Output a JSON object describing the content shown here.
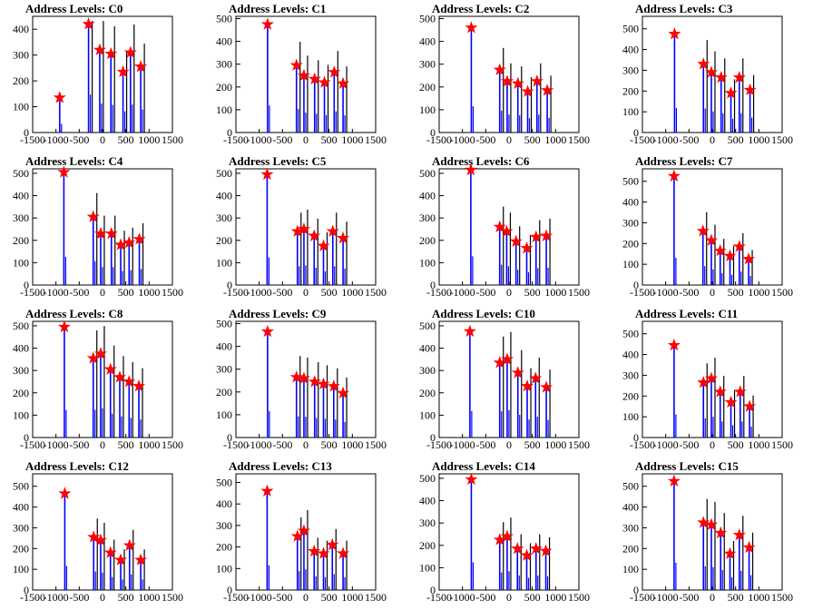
{
  "chart_data": [
    {
      "type": "bar",
      "title": "Address Levels: C0",
      "ylim": [
        0,
        450
      ],
      "yticks": [
        0,
        100,
        200,
        300,
        400
      ],
      "xlim": [
        -1500,
        1500
      ],
      "xtick_labels": [
        "-1500",
        "-1000",
        "-500",
        "0",
        "500",
        "1000",
        "1500"
      ],
      "markers": {
        "x": [
          -920,
          -300,
          -60,
          180,
          440,
          600,
          820
        ],
        "y": [
          135,
          420,
          320,
          305,
          235,
          310,
          255
        ]
      }
    },
    {
      "type": "bar",
      "title": "Address Levels: C1",
      "ylim": [
        0,
        510
      ],
      "yticks": [
        0,
        100,
        200,
        300,
        400,
        500
      ],
      "xlim": [
        -1500,
        1500
      ],
      "xtick_labels": [
        "-1500",
        "-1000",
        "-500",
        "0",
        "500",
        "1000",
        "1500"
      ],
      "markers": {
        "x": [
          -820,
          -200,
          -40,
          190,
          400,
          610,
          800
        ],
        "y": [
          475,
          295,
          250,
          235,
          220,
          265,
          215
        ]
      }
    },
    {
      "type": "bar",
      "title": "Address Levels: C2",
      "ylim": [
        0,
        510
      ],
      "yticks": [
        0,
        100,
        200,
        300,
        400,
        500
      ],
      "xlim": [
        -1500,
        1500
      ],
      "xtick_labels": [
        "-1500",
        "-1000",
        "-500",
        "0",
        "500",
        "1000",
        "1500"
      ],
      "markers": {
        "x": [
          -810,
          -200,
          -40,
          190,
          400,
          600,
          820
        ],
        "y": [
          460,
          275,
          225,
          215,
          180,
          225,
          185
        ]
      }
    },
    {
      "type": "bar",
      "title": "Address Levels: C3",
      "ylim": [
        0,
        560
      ],
      "yticks": [
        0,
        100,
        200,
        300,
        400,
        500
      ],
      "xlim": [
        -1500,
        1500
      ],
      "xtick_labels": [
        "-1500",
        "-1000",
        "-500",
        "0",
        "500",
        "1000",
        "1500"
      ],
      "markers": {
        "x": [
          -810,
          -190,
          -20,
          190,
          400,
          580,
          810
        ],
        "y": [
          475,
          330,
          290,
          265,
          190,
          265,
          205
        ]
      }
    },
    {
      "type": "bar",
      "title": "Address Levels: C4",
      "ylim": [
        0,
        520
      ],
      "yticks": [
        0,
        100,
        200,
        300,
        400,
        500
      ],
      "xlim": [
        -1500,
        1500
      ],
      "xtick_labels": [
        "-1500",
        "-1000",
        "-500",
        "0",
        "500",
        "1000",
        "1500"
      ],
      "markers": {
        "x": [
          -830,
          -200,
          -40,
          190,
          390,
          570,
          790
        ],
        "y": [
          505,
          305,
          230,
          230,
          180,
          190,
          205
        ]
      }
    },
    {
      "type": "bar",
      "title": "Address Levels: C5",
      "ylim": [
        0,
        520
      ],
      "yticks": [
        0,
        100,
        200,
        300,
        400,
        500
      ],
      "xlim": [
        -1500,
        1500
      ],
      "xtick_labels": [
        "-1500",
        "-1000",
        "-500",
        "0",
        "500",
        "1000",
        "1500"
      ],
      "markers": {
        "x": [
          -830,
          -180,
          -40,
          180,
          380,
          580,
          800
        ],
        "y": [
          495,
          240,
          250,
          220,
          175,
          240,
          210
        ]
      }
    },
    {
      "type": "bar",
      "title": "Address Levels: C6",
      "ylim": [
        0,
        520
      ],
      "yticks": [
        0,
        100,
        200,
        300,
        400,
        500
      ],
      "xlim": [
        -1500,
        1500
      ],
      "xtick_labels": [
        "-1500",
        "-1000",
        "-500",
        "0",
        "500",
        "1000",
        "1500"
      ],
      "markers": {
        "x": [
          -820,
          -200,
          -50,
          150,
          380,
          580,
          800
        ],
        "y": [
          515,
          260,
          240,
          195,
          165,
          215,
          220
        ]
      }
    },
    {
      "type": "bar",
      "title": "Address Levels: C7",
      "ylim": [
        0,
        560
      ],
      "yticks": [
        0,
        100,
        200,
        300,
        400,
        500
      ],
      "xlim": [
        -1500,
        1500
      ],
      "xtick_labels": [
        "-1500",
        "-1000",
        "-500",
        "0",
        "500",
        "1000",
        "1500"
      ],
      "markers": {
        "x": [
          -820,
          -200,
          -20,
          170,
          380,
          580,
          780
        ],
        "y": [
          525,
          260,
          215,
          165,
          140,
          185,
          125
        ]
      }
    },
    {
      "type": "bar",
      "title": "Address Levels: C8",
      "ylim": [
        0,
        520
      ],
      "yticks": [
        0,
        100,
        200,
        300,
        400,
        500
      ],
      "xlim": [
        -1500,
        1500
      ],
      "xtick_labels": [
        "-1500",
        "-1000",
        "-500",
        "0",
        "500",
        "1000",
        "1500"
      ],
      "markers": {
        "x": [
          -820,
          -200,
          -40,
          170,
          370,
          570,
          780
        ],
        "y": [
          495,
          355,
          375,
          305,
          270,
          250,
          230
        ]
      }
    },
    {
      "type": "bar",
      "title": "Address Levels: C9",
      "ylim": [
        0,
        510
      ],
      "yticks": [
        0,
        100,
        200,
        300,
        400,
        500
      ],
      "xlim": [
        -1500,
        1500
      ],
      "xtick_labels": [
        "-1500",
        "-1000",
        "-500",
        "0",
        "500",
        "1000",
        "1500"
      ],
      "markers": {
        "x": [
          -820,
          -200,
          -40,
          190,
          380,
          600,
          800
        ],
        "y": [
          465,
          265,
          260,
          245,
          235,
          225,
          195
        ]
      }
    },
    {
      "type": "bar",
      "title": "Address Levels: C10",
      "ylim": [
        0,
        520
      ],
      "yticks": [
        0,
        100,
        200,
        300,
        400,
        500
      ],
      "xlim": [
        -1500,
        1500
      ],
      "xtick_labels": [
        "-1500",
        "-1000",
        "-500",
        "0",
        "500",
        "1000",
        "1500"
      ],
      "markers": {
        "x": [
          -840,
          -200,
          -40,
          190,
          390,
          570,
          800
        ],
        "y": [
          475,
          335,
          350,
          290,
          230,
          265,
          225
        ]
      }
    },
    {
      "type": "bar",
      "title": "Address Levels: C11",
      "ylim": [
        0,
        560
      ],
      "yticks": [
        0,
        100,
        200,
        300,
        400,
        500
      ],
      "xlim": [
        -1500,
        1500
      ],
      "xtick_labels": [
        "-1500",
        "-1000",
        "-500",
        "0",
        "500",
        "1000",
        "1500"
      ],
      "markers": {
        "x": [
          -820,
          -190,
          -20,
          170,
          400,
          600,
          800
        ],
        "y": [
          445,
          265,
          285,
          220,
          170,
          220,
          150
        ]
      }
    },
    {
      "type": "bar",
      "title": "Address Levels: C12",
      "ylim": [
        0,
        560
      ],
      "yticks": [
        0,
        100,
        200,
        300,
        400,
        500
      ],
      "xlim": [
        -1500,
        1500
      ],
      "xtick_labels": [
        "-1500",
        "-1000",
        "-500",
        "0",
        "500",
        "1000",
        "1500"
      ],
      "markers": {
        "x": [
          -810,
          -190,
          -40,
          170,
          390,
          580,
          820
        ],
        "y": [
          465,
          255,
          240,
          180,
          145,
          215,
          145
        ]
      }
    },
    {
      "type": "bar",
      "title": "Address Levels: C13",
      "ylim": [
        0,
        540
      ],
      "yticks": [
        0,
        100,
        200,
        300,
        400,
        500
      ],
      "xlim": [
        -1500,
        1500
      ],
      "xtick_labels": [
        "-1500",
        "-1000",
        "-500",
        "0",
        "500",
        "1000",
        "1500"
      ],
      "markers": {
        "x": [
          -830,
          -180,
          -40,
          180,
          380,
          570,
          800
        ],
        "y": [
          460,
          250,
          275,
          180,
          170,
          210,
          170
        ]
      }
    },
    {
      "type": "bar",
      "title": "Address Levels: C14",
      "ylim": [
        0,
        520
      ],
      "yticks": [
        0,
        100,
        200,
        300,
        400,
        500
      ],
      "xlim": [
        -1500,
        1500
      ],
      "xtick_labels": [
        "-1500",
        "-1000",
        "-500",
        "0",
        "500",
        "1000",
        "1500"
      ],
      "markers": {
        "x": [
          -810,
          -200,
          -40,
          180,
          380,
          580,
          790
        ],
        "y": [
          495,
          225,
          240,
          185,
          155,
          185,
          175
        ]
      }
    },
    {
      "type": "bar",
      "title": "Address Levels: C15",
      "ylim": [
        0,
        560
      ],
      "yticks": [
        0,
        100,
        200,
        300,
        400,
        500
      ],
      "xlim": [
        -1500,
        1500
      ],
      "xtick_labels": [
        "-1500",
        "-1000",
        "-500",
        "0",
        "500",
        "1000",
        "1500"
      ],
      "markers": {
        "x": [
          -820,
          -190,
          -20,
          180,
          380,
          580,
          790
        ],
        "y": [
          525,
          325,
          315,
          275,
          175,
          265,
          205
        ]
      }
    }
  ],
  "colors": {
    "bars_primary": "#0000ff",
    "bars_secondary": "#000000",
    "marker_fill": "#ff0000",
    "marker_stroke": "#ff0000",
    "frame": "#000000"
  }
}
